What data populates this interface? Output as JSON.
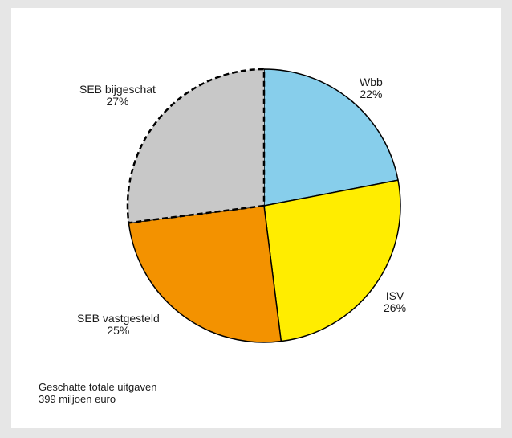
{
  "chart_data": {
    "type": "pie",
    "slices": [
      {
        "name": "Wbb",
        "value": 22,
        "label": "22%",
        "color": "#87ceeb",
        "dashed": false
      },
      {
        "name": "ISV",
        "value": 26,
        "label": "26%",
        "color": "#ffed00",
        "dashed": false
      },
      {
        "name": "SEB vastgesteld",
        "value": 25,
        "label": "25%",
        "color": "#f39200",
        "dashed": false
      },
      {
        "name": "SEB bijgeschat",
        "value": 27,
        "label": "27%",
        "color": "#c8c8c8",
        "dashed": true
      }
    ],
    "start": "top",
    "direction": "clockwise"
  },
  "footnote": {
    "line1": "Geschatte totale uitgaven",
    "line2": "399 miljoen euro"
  }
}
